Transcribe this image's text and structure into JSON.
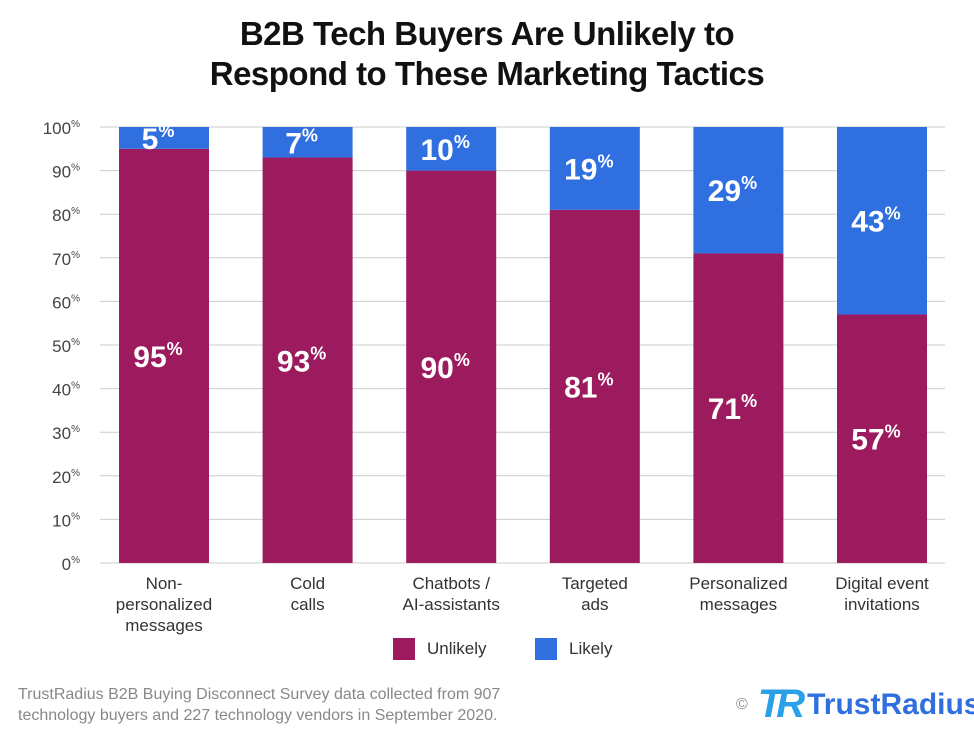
{
  "chart_data": {
    "type": "bar",
    "stacked": true,
    "title_lines": [
      "B2B Tech Buyers Are Unlikely to",
      "Respond to These Marketing Tactics"
    ],
    "categories": [
      [
        "Non-",
        "personalized",
        "messages"
      ],
      [
        "Cold",
        "calls"
      ],
      [
        "Chatbots /",
        "AI-assistants"
      ],
      [
        "Targeted",
        "ads"
      ],
      [
        "Personalized",
        "messages"
      ],
      [
        "Digital event",
        "invitations"
      ]
    ],
    "series": [
      {
        "name": "Unlikely",
        "color": "#9c1a5e",
        "values": [
          95,
          93,
          90,
          81,
          71,
          57
        ]
      },
      {
        "name": "Likely",
        "color": "#2f6fe0",
        "values": [
          5,
          7,
          10,
          19,
          29,
          43
        ]
      }
    ],
    "ylim": [
      0,
      100
    ],
    "yticks": [
      0,
      10,
      20,
      30,
      40,
      50,
      60,
      70,
      80,
      90,
      100
    ],
    "grid": true,
    "legend_position": "bottom"
  },
  "footnote": [
    "TrustRadius B2B Buying Disconnect Survey data collected from 907",
    "technology buyers and 227 technology vendors in September 2020."
  ],
  "logo": {
    "copyright": "©",
    "mark": "TR",
    "name": "TrustRadius"
  }
}
